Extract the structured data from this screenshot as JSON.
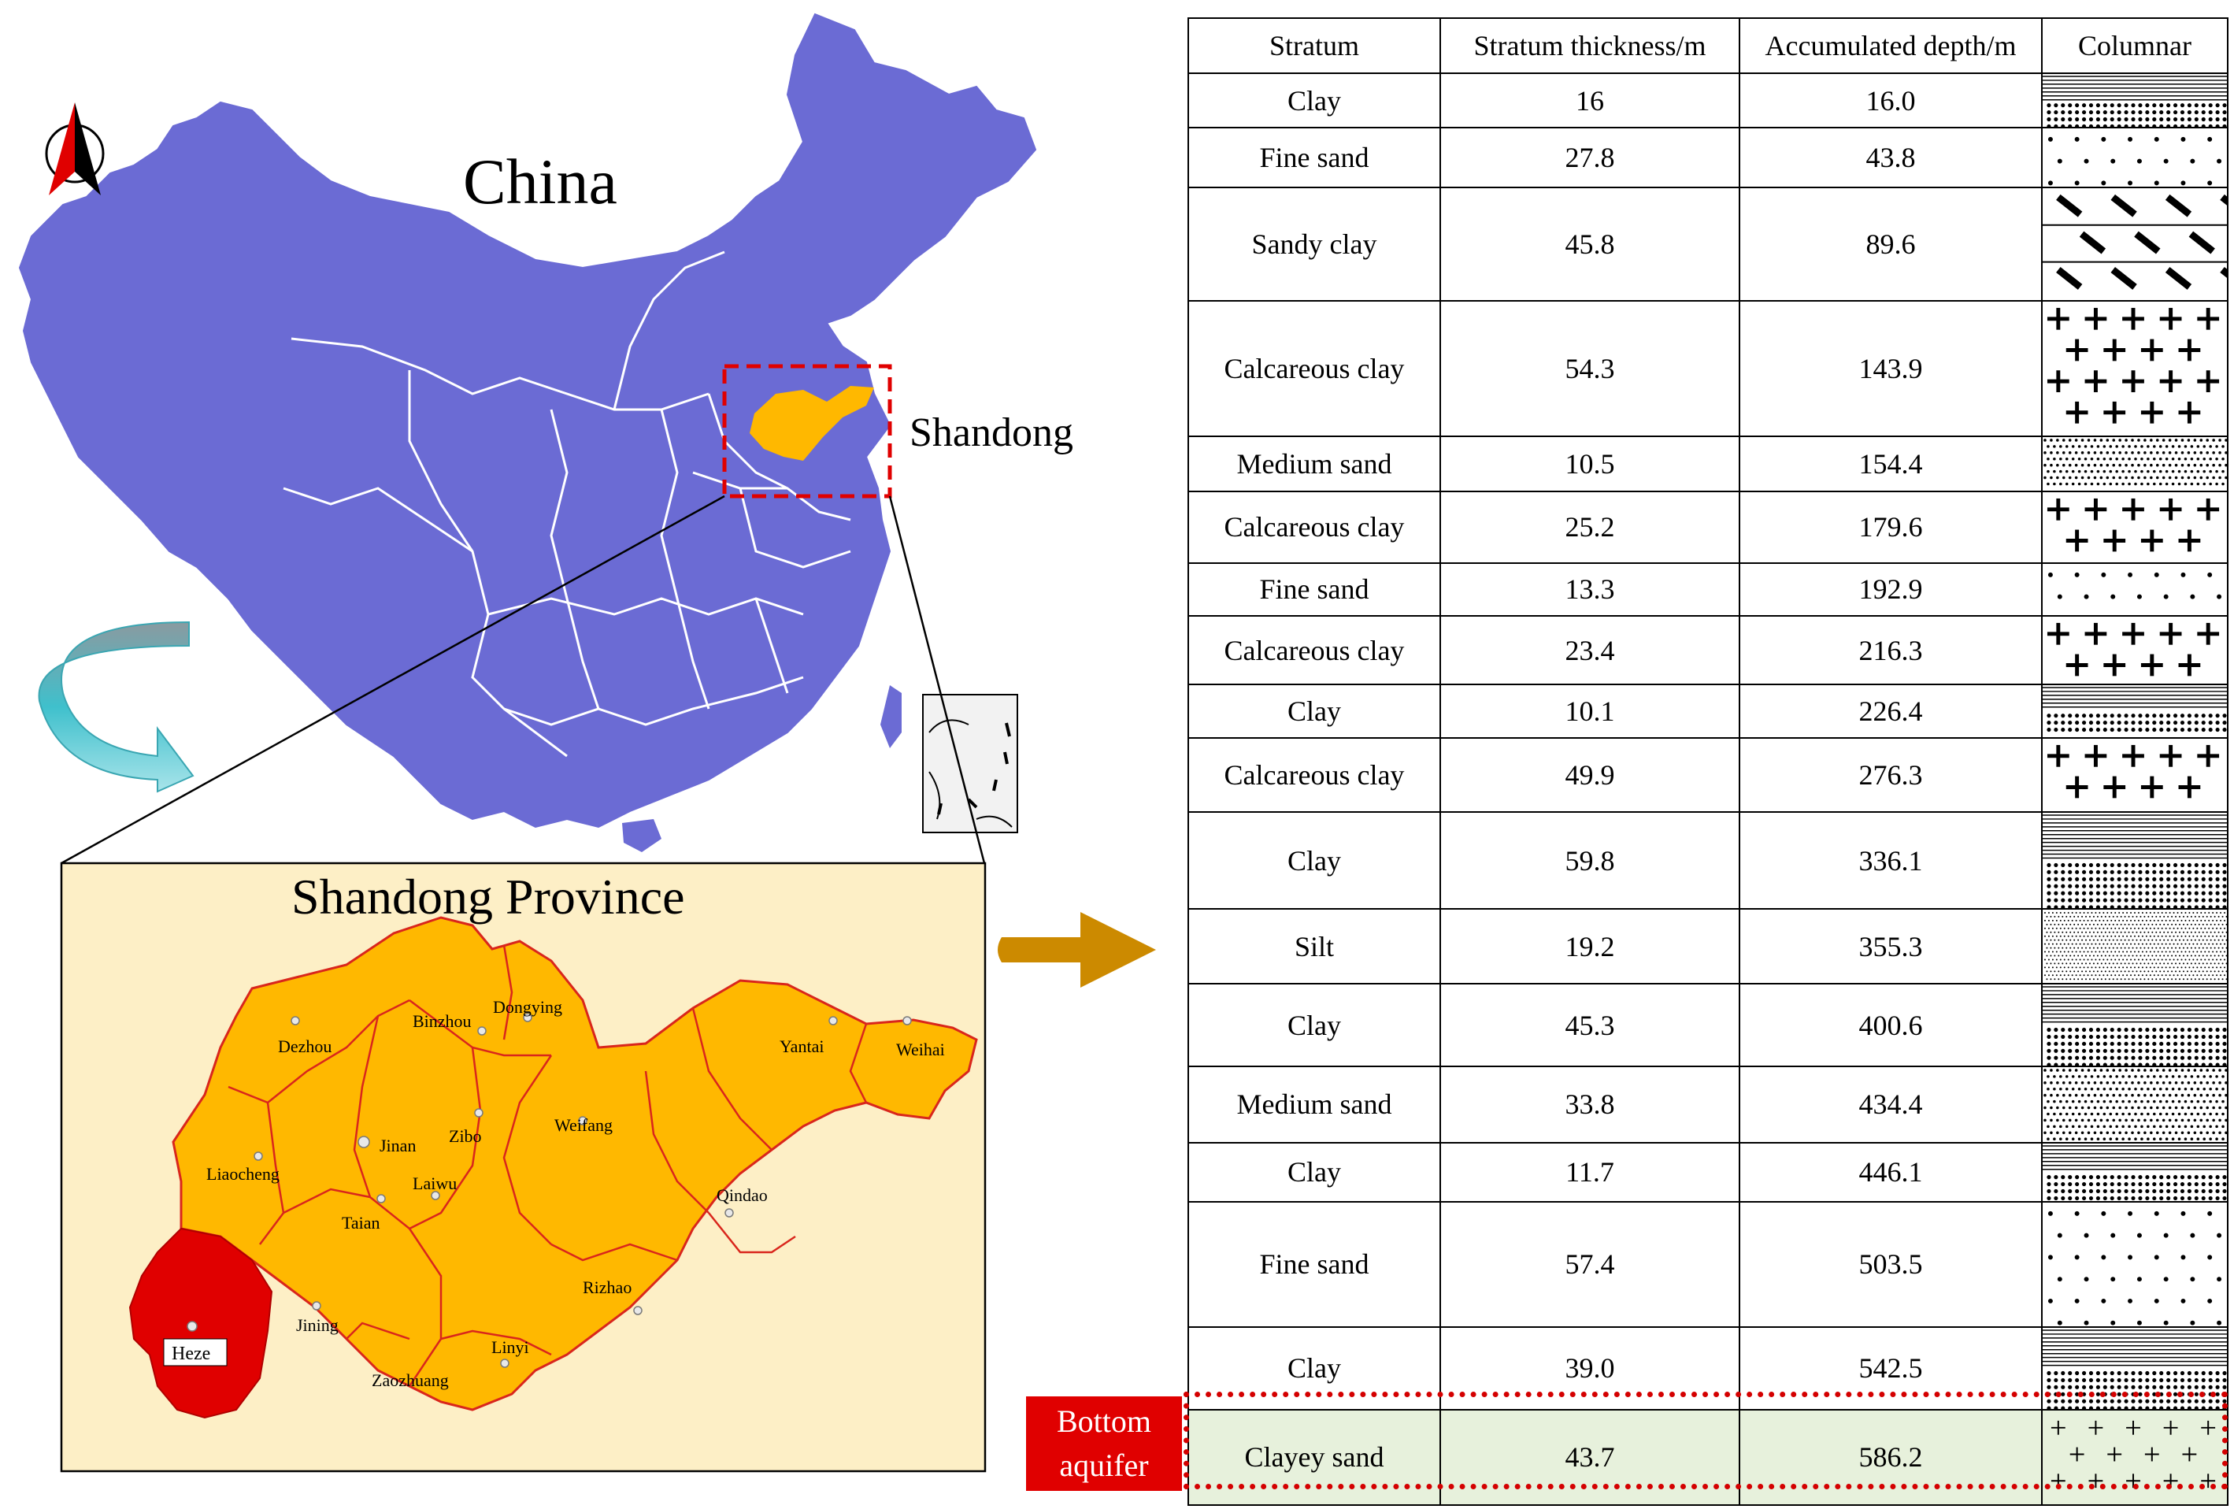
{
  "map": {
    "country_label": "China",
    "province_label": "Shandong",
    "inset_title": "Shandong Province",
    "cities": [
      {
        "name": "Dezhou"
      },
      {
        "name": "Binzhou"
      },
      {
        "name": "Dongying"
      },
      {
        "name": "Yantai"
      },
      {
        "name": "Weihai"
      },
      {
        "name": "Liaocheng"
      },
      {
        "name": "Jinan"
      },
      {
        "name": "Zibo"
      },
      {
        "name": "Weifang"
      },
      {
        "name": "Laiwu"
      },
      {
        "name": "Taian"
      },
      {
        "name": "Qindao"
      },
      {
        "name": "Rizhao"
      },
      {
        "name": "Heze"
      },
      {
        "name": "Jining"
      },
      {
        "name": "Linyi"
      },
      {
        "name": "Zaozhuang"
      }
    ],
    "highlighted_city": "Heze",
    "colors": {
      "china_fill": "#6b6bd4",
      "shandong_fill": "#ffb800",
      "heze_fill": "#e00000",
      "inset_background": "#fdefc6",
      "arrow_color": "#cc8a00",
      "curved_arrow": "#74d0d6"
    },
    "icons": [
      "north-arrow-icon",
      "curved-arrow-icon",
      "right-arrow-icon"
    ]
  },
  "table": {
    "headers": [
      "Stratum",
      "Stratum thickness/m",
      "Accumulated depth/m",
      "Columnar"
    ],
    "rows": [
      {
        "stratum": "Clay",
        "thickness": "16",
        "depth": "16.0",
        "pattern": "clay"
      },
      {
        "stratum": "Fine sand",
        "thickness": "27.8",
        "depth": "43.8",
        "pattern": "fine-sand"
      },
      {
        "stratum": "Sandy clay",
        "thickness": "45.8",
        "depth": "89.6",
        "pattern": "sandy-clay"
      },
      {
        "stratum": "Calcareous clay",
        "thickness": "54.3",
        "depth": "143.9",
        "pattern": "calcareous-clay"
      },
      {
        "stratum": "Medium sand",
        "thickness": "10.5",
        "depth": "154.4",
        "pattern": "medium-sand"
      },
      {
        "stratum": "Calcareous clay",
        "thickness": "25.2",
        "depth": "179.6",
        "pattern": "calcareous-clay"
      },
      {
        "stratum": "Fine sand",
        "thickness": "13.3",
        "depth": "192.9",
        "pattern": "fine-sand"
      },
      {
        "stratum": "Calcareous clay",
        "thickness": "23.4",
        "depth": "216.3",
        "pattern": "calcareous-clay"
      },
      {
        "stratum": "Clay",
        "thickness": "10.1",
        "depth": "226.4",
        "pattern": "clay"
      },
      {
        "stratum": "Calcareous clay",
        "thickness": "49.9",
        "depth": "276.3",
        "pattern": "calcareous-clay"
      },
      {
        "stratum": "Clay",
        "thickness": "59.8",
        "depth": "336.1",
        "pattern": "clay"
      },
      {
        "stratum": "Silt",
        "thickness": "19.2",
        "depth": "355.3",
        "pattern": "silt"
      },
      {
        "stratum": "Clay",
        "thickness": "45.3",
        "depth": "400.6",
        "pattern": "clay"
      },
      {
        "stratum": "Medium sand",
        "thickness": "33.8",
        "depth": "434.4",
        "pattern": "medium-sand"
      },
      {
        "stratum": "Clay",
        "thickness": "11.7",
        "depth": "446.1",
        "pattern": "clay"
      },
      {
        "stratum": "Fine sand",
        "thickness": "57.4",
        "depth": "503.5",
        "pattern": "fine-sand"
      },
      {
        "stratum": "Clay",
        "thickness": "39.0",
        "depth": "542.5",
        "pattern": "clay"
      },
      {
        "stratum": "Clayey sand",
        "thickness": "43.7",
        "depth": "586.2",
        "pattern": "clayey-sand",
        "highlight": true
      }
    ]
  },
  "bottom_label": "Bottom aquifer",
  "colors": {
    "highlight_row": "#e7f1dc",
    "highlight_border": "#d40000",
    "label_background": "#e00000"
  }
}
